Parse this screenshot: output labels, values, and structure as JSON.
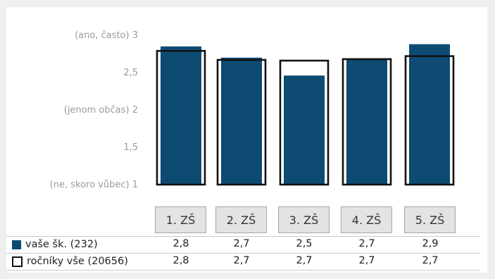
{
  "chart_data": {
    "type": "bar",
    "categories": [
      "1. ZŠ",
      "2. ZŠ",
      "3. ZŠ",
      "4. ZŠ",
      "5. ZŠ"
    ],
    "series": [
      {
        "name": "vaše šk. (232)",
        "style": "filled",
        "color": "#0d4b73",
        "values": [
          2.85,
          2.7,
          2.46,
          2.68,
          2.88
        ],
        "labels": [
          "2,8",
          "2,7",
          "2,5",
          "2,7",
          "2,9"
        ]
      },
      {
        "name": "ročníky vše (20656)",
        "style": "outline",
        "color": "#111111",
        "values": [
          2.79,
          2.67,
          2.66,
          2.68,
          2.72
        ],
        "labels": [
          "2,8",
          "2,7",
          "2,7",
          "2,7",
          "2,7"
        ]
      }
    ],
    "ylim": [
      1,
      3
    ],
    "yticks": [
      {
        "value": 3,
        "label": "(ano, často)  3"
      },
      {
        "value": 2.5,
        "label": "2,5"
      },
      {
        "value": 2,
        "label": "(jenom občas)  2"
      },
      {
        "value": 1.5,
        "label": "1,5"
      },
      {
        "value": 1,
        "label": "(ne, skoro vůbec)  1"
      }
    ],
    "grid": false,
    "legend": "table-below"
  }
}
